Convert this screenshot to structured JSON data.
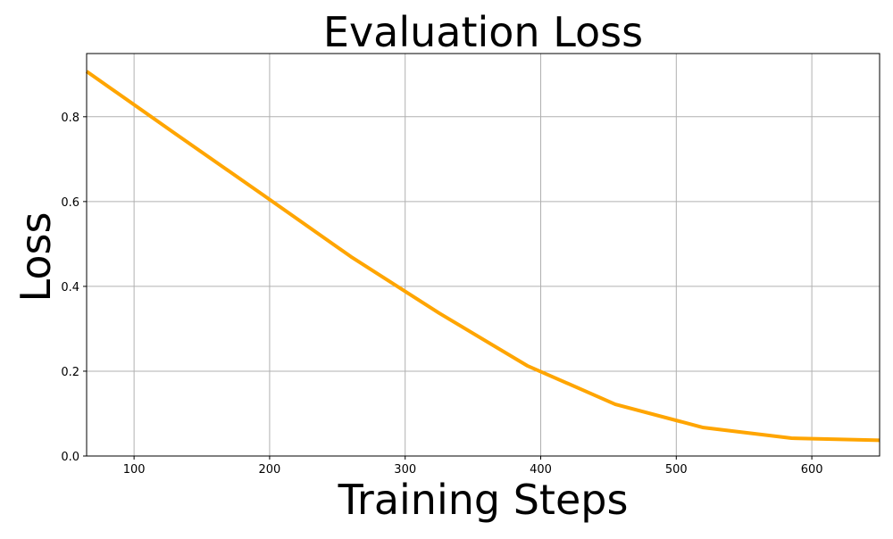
{
  "chart_data": {
    "type": "line",
    "title": "Evaluation Loss",
    "xlabel": "Training Steps",
    "ylabel": "Loss",
    "xlim": [
      65,
      650
    ],
    "ylim": [
      0,
      0.949
    ],
    "grid": true,
    "xticks": [
      100,
      200,
      300,
      400,
      500,
      600
    ],
    "xtick_labels": [
      "100",
      "200",
      "300",
      "400",
      "500",
      "600"
    ],
    "yticks": [
      0,
      0.2,
      0.4,
      0.6,
      0.8
    ],
    "ytick_labels": [
      "0.0",
      "0.2",
      "0.4",
      "0.6",
      "0.8"
    ],
    "series": [
      {
        "color": "#FFA500",
        "x": [
          65,
          130,
          195,
          260,
          325,
          390,
          455,
          520,
          585,
          650
        ],
        "y": [
          0.907,
          0.761,
          0.616,
          0.47,
          0.337,
          0.213,
          0.122,
          0.067,
          0.042,
          0.037
        ]
      }
    ]
  }
}
